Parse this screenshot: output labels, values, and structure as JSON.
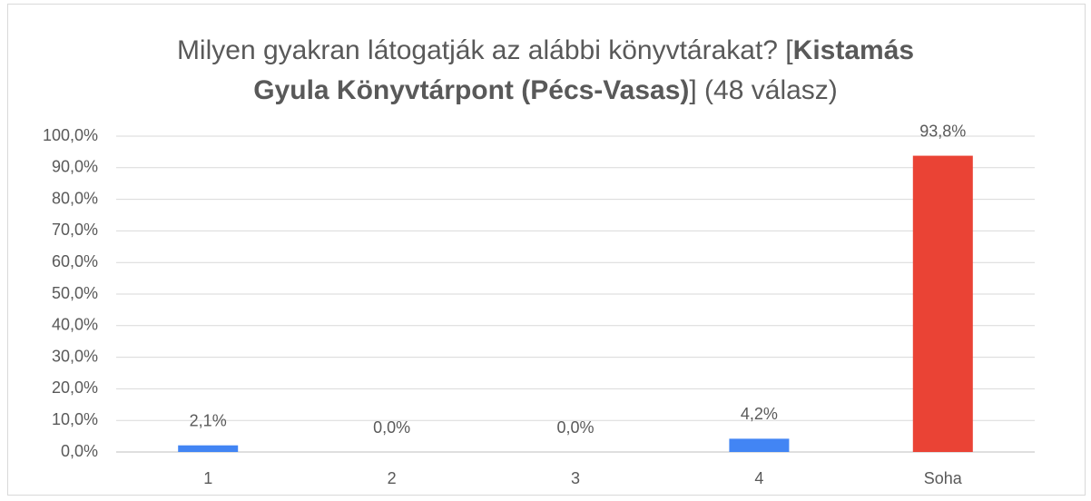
{
  "chart_data": {
    "type": "bar",
    "title": [
      [
        {
          "text": "Milyen gyakran látogatják az alábbi könyvtárakat? [",
          "bold": false
        },
        {
          "text": "Kistamás",
          "bold": true
        }
      ],
      [
        {
          "text": "Gyula Könyvtárpont (Pécs-Vasas)",
          "bold": true
        },
        {
          "text": "] (48 válasz)",
          "bold": false
        }
      ]
    ],
    "categories": [
      "1",
      "2",
      "3",
      "4",
      "Soha"
    ],
    "values": [
      2.1,
      0,
      0,
      4.2,
      93.8
    ],
    "value_labels": [
      "2,1%",
      "0,0%",
      "0,0%",
      "4,2%",
      "93,8%"
    ],
    "colors": [
      "#4285f4",
      "#4285f4",
      "#4285f4",
      "#4285f4",
      "#ea4335"
    ],
    "ylim": [
      0,
      100
    ],
    "yticks": [
      {
        "value": 0,
        "label": "0,0%"
      },
      {
        "value": 10,
        "label": "10,0%"
      },
      {
        "value": 20,
        "label": "20,0%"
      },
      {
        "value": 30,
        "label": "30,0%"
      },
      {
        "value": 40,
        "label": "40,0%"
      },
      {
        "value": 50,
        "label": "50,0%"
      },
      {
        "value": 60,
        "label": "60,0%"
      },
      {
        "value": 70,
        "label": "70,0%"
      },
      {
        "value": 80,
        "label": "80,0%"
      },
      {
        "value": 90,
        "label": "90,0%"
      },
      {
        "value": 100,
        "label": "100,0%"
      }
    ],
    "grid": true
  }
}
